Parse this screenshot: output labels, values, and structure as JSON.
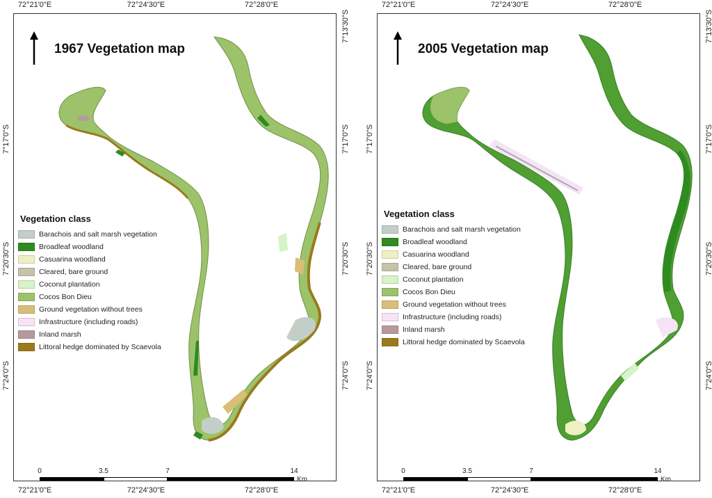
{
  "coords": {
    "lon": [
      "72°21'0\"E",
      "72°24'30\"E",
      "72°28'0\"E"
    ],
    "lat_left": [
      "7°17'0\"S",
      "7°20'30\"S",
      "7°24'0\"S"
    ],
    "lat_right": [
      "7°13'30\"S",
      "7°17'0\"S",
      "7°20'30\"S",
      "7°24'0\"S"
    ]
  },
  "legend": {
    "title": "Vegetation class",
    "items": [
      {
        "label": "Barachois and salt marsh vegetation",
        "color": "#c4cec8"
      },
      {
        "label": "Broadleaf woodland",
        "color": "#2e8b1f"
      },
      {
        "label": "Casuarina woodland",
        "color": "#eef0c4"
      },
      {
        "label": "Cleared, bare ground",
        "color": "#c5c3a8"
      },
      {
        "label": "Coconut plantation",
        "color": "#d6f4c6"
      },
      {
        "label": "Cocos Bon Dieu",
        "color": "#9cc36a"
      },
      {
        "label": "Ground vegetation without trees",
        "color": "#d9be78"
      },
      {
        "label": "Infrastructure (including roads)",
        "color": "#f6e4f6"
      },
      {
        "label": "Inland marsh",
        "color": "#b7999c"
      },
      {
        "label": "Littoral hedge dominated by Scaevola",
        "color": "#9a7a1c"
      }
    ]
  },
  "scalebar": {
    "ticks": [
      "0",
      "3.5",
      "7",
      "14"
    ],
    "unit": "Km"
  },
  "maps": [
    {
      "title": "1967 Vegetation map",
      "year": "1967"
    },
    {
      "title": "2005 Vegetation map",
      "year": "2005"
    }
  ]
}
